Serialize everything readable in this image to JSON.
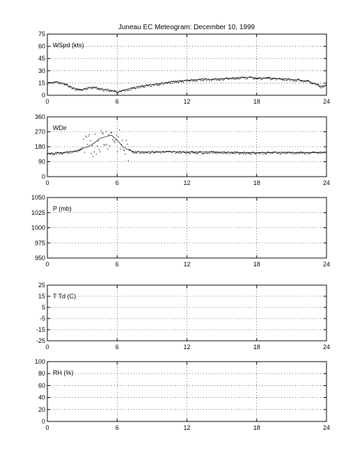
{
  "title": "Juneau EC Meteogram:   December 10, 1999",
  "chart_data": [
    {
      "type": "scatter",
      "panel_label": "WSpd (kts)",
      "xlim": [
        0,
        24
      ],
      "xticks": [
        0,
        6,
        12,
        18,
        24
      ],
      "ylim": [
        0,
        75
      ],
      "yticks": [
        0,
        15,
        30,
        45,
        60,
        75
      ],
      "grid": true,
      "series": [
        {
          "x": [
            0,
            0.5,
            1,
            1.5,
            2,
            2.5,
            3,
            3.5,
            4,
            4.5,
            5,
            5.5,
            6,
            6.5,
            7,
            7.5,
            8,
            8.5,
            9,
            9.5,
            10,
            10.5,
            11,
            11.5,
            12,
            12.5,
            13,
            13.5,
            14,
            14.5,
            15,
            15.5,
            16,
            16.5,
            17,
            17.5,
            18,
            18.5,
            19,
            19.5,
            20,
            20.5,
            21,
            21.5,
            22,
            22.5,
            23,
            23.5,
            24
          ],
          "y": [
            15,
            16,
            16,
            14,
            10,
            8,
            7,
            9,
            10,
            8,
            7,
            6,
            4,
            6,
            8,
            10,
            11,
            12,
            13,
            14,
            15,
            16,
            17,
            18,
            18,
            19,
            19,
            20,
            19,
            20,
            20,
            21,
            21,
            22,
            22,
            22,
            21,
            21,
            21,
            21,
            20,
            20,
            19,
            19,
            18,
            17,
            14,
            11,
            12
          ]
        }
      ]
    },
    {
      "type": "scatter",
      "panel_label": "WDir",
      "xlim": [
        0,
        24
      ],
      "xticks": [
        0,
        6,
        12,
        18,
        24
      ],
      "ylim": [
        0,
        360
      ],
      "yticks": [
        0,
        90,
        180,
        270,
        360
      ],
      "grid": true,
      "series": [
        {
          "x": [
            0,
            0.5,
            1,
            1.5,
            2,
            2.5,
            3,
            3.5,
            4,
            4.5,
            5,
            5.5,
            6,
            6.5,
            7,
            7.5,
            8,
            8.5,
            9,
            9.5,
            10,
            10.5,
            11,
            11.5,
            12,
            12.5,
            13,
            13.5,
            14,
            14.5,
            15,
            15.5,
            16,
            16.5,
            17,
            17.5,
            18,
            18.5,
            19,
            19.5,
            20,
            20.5,
            21,
            21.5,
            22,
            22.5,
            23,
            23.5,
            24
          ],
          "y": [
            140,
            140,
            145,
            145,
            150,
            155,
            170,
            180,
            200,
            230,
            240,
            250,
            220,
            180,
            160,
            150,
            150,
            150,
            150,
            150,
            150,
            150,
            150,
            148,
            148,
            148,
            148,
            148,
            148,
            148,
            147,
            146,
            146,
            145,
            145,
            145,
            145,
            145,
            145,
            146,
            146,
            146,
            146,
            145,
            145,
            145,
            145,
            146,
            147
          ]
        }
      ]
    },
    {
      "type": "scatter",
      "panel_label": "P (mb)",
      "xlim": [
        0,
        24
      ],
      "xticks": [
        0,
        6,
        12,
        18,
        24
      ],
      "ylim": [
        950,
        1050
      ],
      "yticks": [
        950,
        975,
        1000,
        1025,
        1050
      ],
      "grid": true,
      "series": []
    },
    {
      "type": "scatter",
      "panel_label": "T Td (C)",
      "xlim": [
        0,
        24
      ],
      "xticks": [
        0,
        6,
        12,
        18,
        24
      ],
      "ylim": [
        -25,
        25
      ],
      "yticks": [
        -25,
        -15,
        -5,
        5,
        15,
        25
      ],
      "grid": true,
      "series": []
    },
    {
      "type": "scatter",
      "panel_label": "RH (%)",
      "xlim": [
        0,
        24
      ],
      "xticks": [
        0,
        6,
        12,
        18,
        24
      ],
      "ylim": [
        0,
        100
      ],
      "yticks": [
        0,
        20,
        40,
        60,
        80,
        100
      ],
      "grid": true,
      "series": []
    }
  ]
}
